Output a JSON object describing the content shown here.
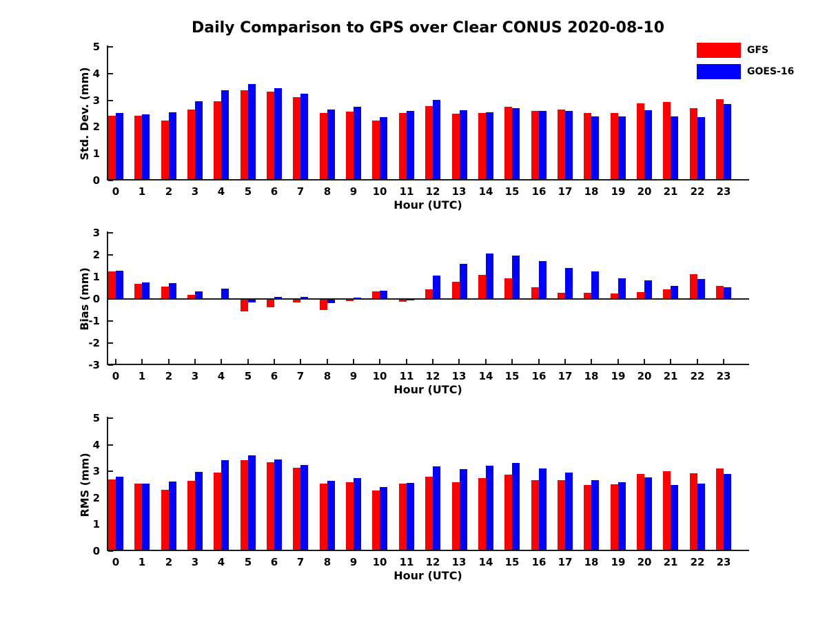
{
  "title": "Daily Comparison to GPS over Clear CONUS 2020-08-10",
  "legend": {
    "entries": [
      {
        "label": "GFS",
        "color": "#ff0000"
      },
      {
        "label": "GOES-16",
        "color": "#0000ff"
      }
    ]
  },
  "colors": {
    "gfs": "#ff0000",
    "goes16": "#0000ff",
    "axis": "#1a1a1a",
    "background": "#ffffff"
  },
  "chart_data": [
    {
      "id": "stddev",
      "type": "bar",
      "xlabel": "Hour (UTC)",
      "ylabel": "Std. Dev. (mm)",
      "ylim": [
        0,
        5
      ],
      "yticks": [
        0,
        1,
        2,
        3,
        4,
        5
      ],
      "legend_position": "top-right-outside",
      "grid": false,
      "categories": [
        "0",
        "1",
        "2",
        "3",
        "4",
        "5",
        "6",
        "7",
        "8",
        "9",
        "10",
        "11",
        "12",
        "13",
        "14",
        "15",
        "16",
        "17",
        "18",
        "19",
        "20",
        "21",
        "22",
        "23"
      ],
      "series": [
        {
          "name": "GFS",
          "color": "#ff0000",
          "values": [
            2.42,
            2.42,
            2.25,
            2.65,
            2.97,
            3.38,
            3.33,
            3.12,
            2.52,
            2.58,
            2.25,
            2.53,
            2.79,
            2.5,
            2.53,
            2.75,
            2.61,
            2.66,
            2.52,
            2.53,
            2.89,
            2.95,
            2.71,
            3.05
          ]
        },
        {
          "name": "GOES-16",
          "color": "#0000ff",
          "values": [
            2.52,
            2.47,
            2.55,
            2.97,
            3.38,
            3.6,
            3.46,
            3.26,
            2.65,
            2.76,
            2.38,
            2.6,
            3.01,
            2.64,
            2.56,
            2.7,
            2.61,
            2.6,
            2.39,
            2.41,
            2.62,
            2.41,
            2.36,
            2.85
          ]
        }
      ]
    },
    {
      "id": "bias",
      "type": "bar",
      "xlabel": "Hour (UTC)",
      "ylabel": "Bias (mm)",
      "ylim": [
        -3,
        3
      ],
      "yticks": [
        3,
        2,
        1,
        0,
        -1,
        -2,
        -3
      ],
      "grid": false,
      "categories": [
        "0",
        "1",
        "2",
        "3",
        "4",
        "5",
        "6",
        "7",
        "8",
        "9",
        "10",
        "11",
        "12",
        "13",
        "14",
        "15",
        "16",
        "17",
        "18",
        "19",
        "20",
        "21",
        "22",
        "23"
      ],
      "series": [
        {
          "name": "GFS",
          "color": "#ff0000",
          "values": [
            1.25,
            0.7,
            0.55,
            0.18,
            0.02,
            -0.56,
            -0.36,
            -0.16,
            -0.51,
            -0.09,
            0.34,
            -0.12,
            0.45,
            0.77,
            1.1,
            0.93,
            0.52,
            0.28,
            0.28,
            0.25,
            0.32,
            0.45,
            1.12,
            0.6
          ]
        },
        {
          "name": "GOES-16",
          "color": "#0000ff",
          "values": [
            1.28,
            0.75,
            0.73,
            0.36,
            0.48,
            -0.14,
            0.08,
            0.11,
            -0.2,
            0.06,
            0.38,
            -0.07,
            1.07,
            1.6,
            2.05,
            1.96,
            1.71,
            1.4,
            1.24,
            0.93,
            0.86,
            0.61,
            0.9,
            0.52
          ]
        }
      ]
    },
    {
      "id": "rms",
      "type": "bar",
      "xlabel": "Hour (UTC)",
      "ylabel": "RMS (mm)",
      "ylim": [
        0,
        5
      ],
      "yticks": [
        0,
        1,
        2,
        3,
        4,
        5
      ],
      "grid": false,
      "categories": [
        "0",
        "1",
        "2",
        "3",
        "4",
        "5",
        "6",
        "7",
        "8",
        "9",
        "10",
        "11",
        "12",
        "13",
        "14",
        "15",
        "16",
        "17",
        "18",
        "19",
        "20",
        "21",
        "22",
        "23"
      ],
      "series": [
        {
          "name": "GFS",
          "color": "#ff0000",
          "values": [
            2.7,
            2.53,
            2.3,
            2.65,
            2.95,
            3.42,
            3.35,
            3.13,
            2.55,
            2.58,
            2.28,
            2.53,
            2.8,
            2.6,
            2.75,
            2.87,
            2.67,
            2.68,
            2.5,
            2.52,
            2.9,
            3.0,
            2.92,
            3.1
          ]
        },
        {
          "name": "GOES-16",
          "color": "#0000ff",
          "values": [
            2.8,
            2.55,
            2.62,
            2.98,
            3.42,
            3.6,
            3.45,
            3.25,
            2.65,
            2.75,
            2.4,
            2.57,
            3.18,
            3.08,
            3.22,
            3.33,
            3.1,
            2.95,
            2.68,
            2.58,
            2.77,
            2.48,
            2.53,
            2.9
          ]
        }
      ]
    }
  ]
}
